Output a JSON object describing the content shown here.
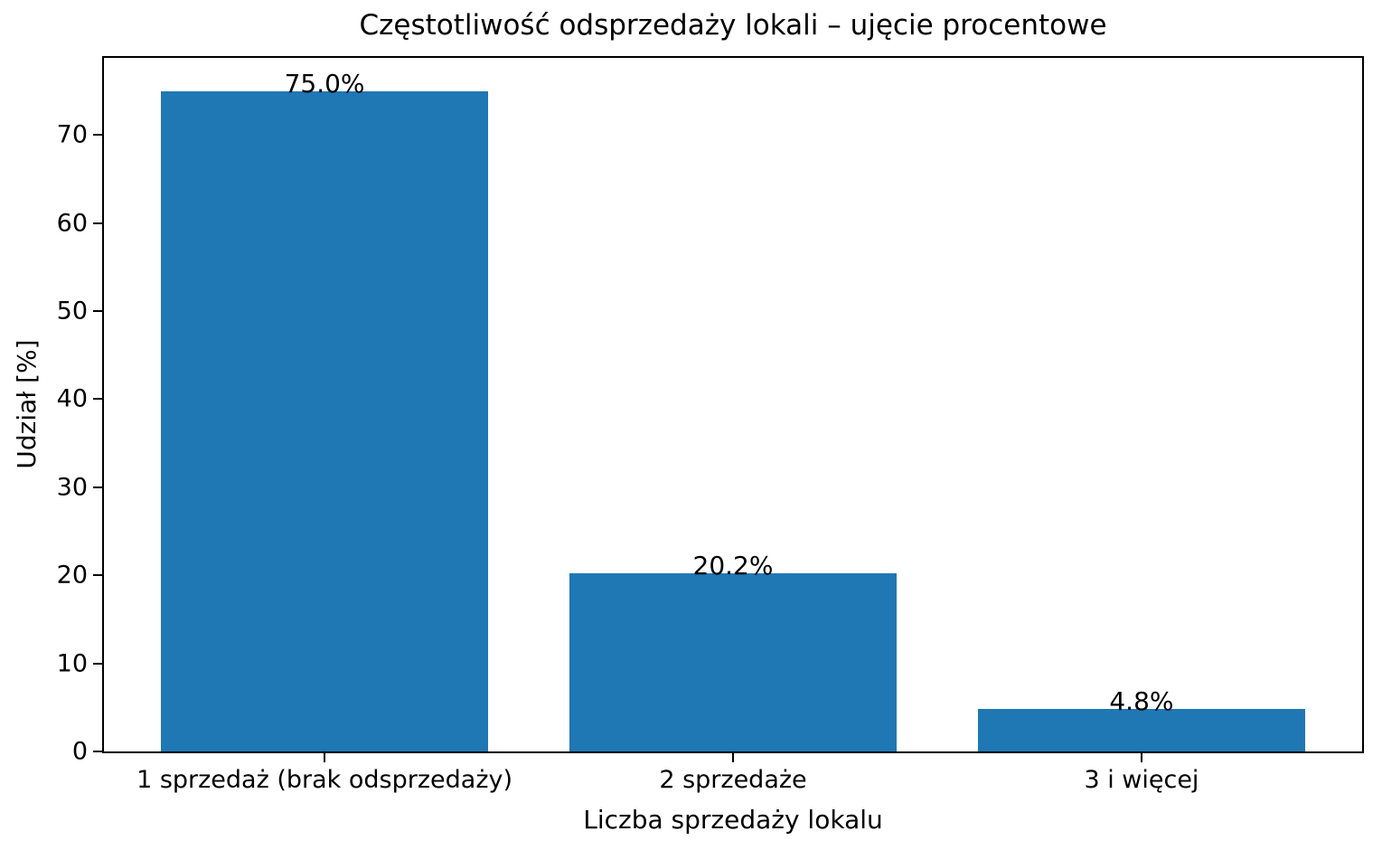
{
  "chart_data": {
    "type": "bar",
    "title": "Częstotliwość odsprzedaży lokali – ujęcie procentowe",
    "xlabel": "Liczba sprzedaży lokalu",
    "ylabel": "Udział [%]",
    "categories": [
      "1 sprzedaż (brak odsprzedaży)",
      "2 sprzedaże",
      "3 i więcej"
    ],
    "values": [
      75.0,
      20.2,
      4.8
    ],
    "value_labels": [
      "75.0%",
      "20.2%",
      "4.8%"
    ],
    "yticks": [
      0,
      10,
      20,
      30,
      40,
      50,
      60,
      70
    ],
    "ylim": [
      0,
      78.75
    ],
    "xlim": [
      -0.54,
      2.54
    ],
    "bar_width": 0.8,
    "bar_color": "#1f77b4",
    "axis_color": "#000000",
    "background_color": "#ffffff",
    "grid": false,
    "legend": null
  }
}
